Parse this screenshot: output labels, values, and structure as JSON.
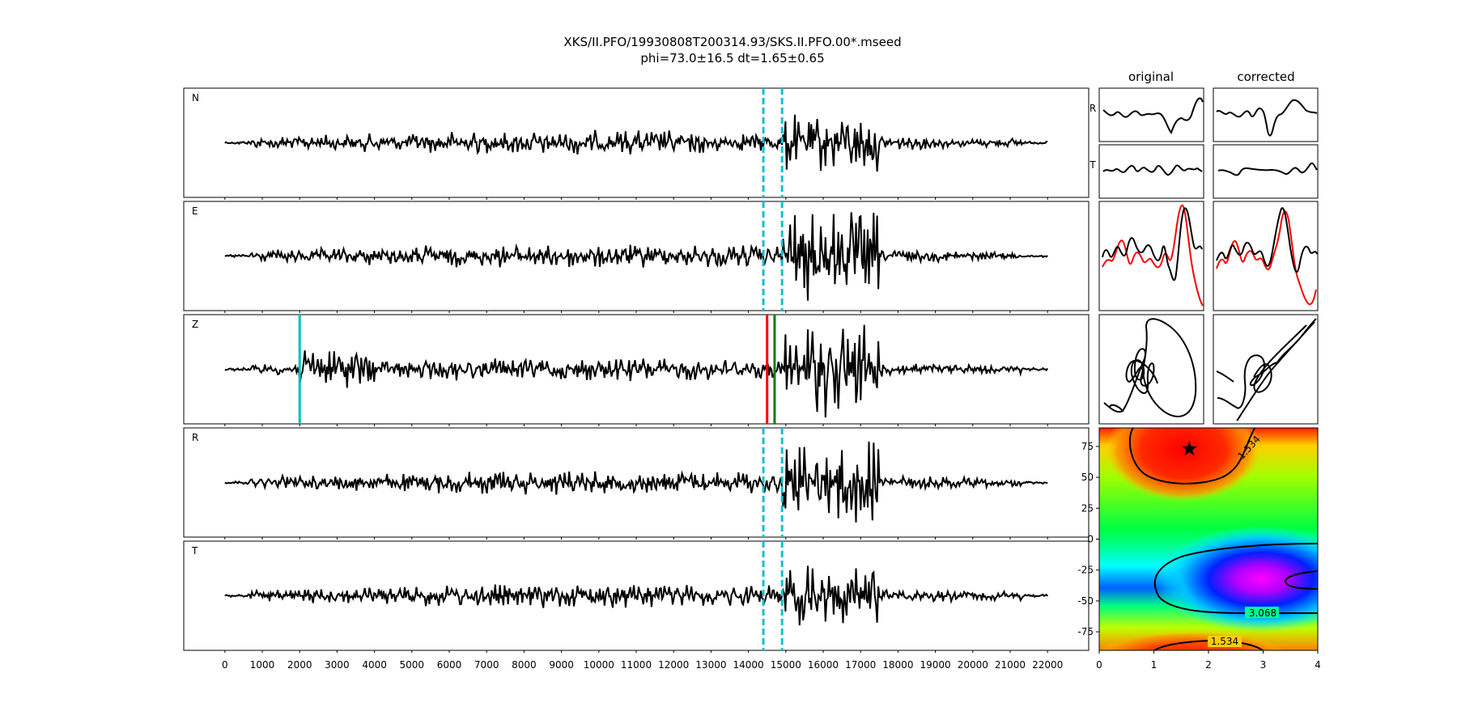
{
  "figure": {
    "title_line1": "XKS/II.PFO/19930808T200314.93/SKS.II.PFO.00*.mseed",
    "title_line2": "phi=73.0±16.5 dt=1.65±0.65",
    "col_original": "original",
    "col_corrected": "corrected"
  },
  "colors": {
    "trace": "#000000",
    "window_marker": "#17becf",
    "pick_red": "#ff0000",
    "pick_green": "#008000",
    "pick_cyan": "#00bfbf",
    "comparison_red": "#ff0000"
  },
  "chart_data": [
    {
      "type": "line",
      "id": "seismograms",
      "panels": [
        "N",
        "E",
        "Z",
        "R",
        "T"
      ],
      "x_ticks": [
        0,
        1000,
        2000,
        3000,
        4000,
        5000,
        6000,
        7000,
        8000,
        9000,
        10000,
        11000,
        12000,
        13000,
        14000,
        15000,
        16000,
        17000,
        18000,
        19000,
        20000,
        21000,
        22000
      ],
      "x_range": [
        -1100,
        23100
      ],
      "window_start": 14400,
      "window_end": 14900,
      "z_picks": [
        {
          "x": 2000,
          "color": "cyan"
        },
        {
          "x": 14500,
          "color": "red"
        },
        {
          "x": 14700,
          "color": "green"
        }
      ]
    },
    {
      "type": "line",
      "id": "rt-comparison",
      "rows": [
        "R",
        "T"
      ],
      "columns": [
        "original",
        "corrected"
      ]
    },
    {
      "type": "heatmap",
      "id": "error-surface",
      "x_ticks": [
        0,
        1,
        2,
        3,
        4
      ],
      "y_ticks": [
        75,
        50,
        25,
        0,
        -25,
        -50,
        -75
      ],
      "xlim": [
        0,
        4
      ],
      "ylim": [
        -90,
        90
      ],
      "best_fit": {
        "dt": 1.65,
        "phi": 73.0
      },
      "contour_labels": [
        "1.534",
        "3.068",
        "1.534"
      ]
    }
  ]
}
